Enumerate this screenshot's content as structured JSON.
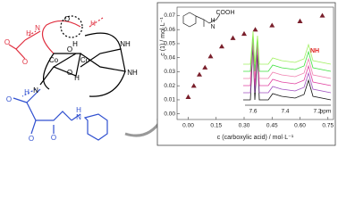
{
  "chart_data": {
    "type": "scatter",
    "x_label": "c (carboxylic acid) / mol·L⁻¹",
    "y_label": "c (1) / mol·L⁻¹",
    "x": [
      0.0,
      0.03,
      0.06,
      0.09,
      0.12,
      0.18,
      0.24,
      0.3,
      0.36,
      0.45,
      0.6,
      0.72
    ],
    "values": [
      0.012,
      0.02,
      0.028,
      0.033,
      0.041,
      0.048,
      0.054,
      0.057,
      0.06,
      0.063,
      0.066,
      0.07
    ],
    "color": "#7a1f2b",
    "xlim": [
      -0.06,
      0.78
    ],
    "ylim": [
      -0.004,
      0.076
    ],
    "xticks": [
      {
        "value": 0,
        "label": "0.00"
      },
      0.15,
      {
        "value": 0.3,
        "label": "0.30"
      },
      0.45,
      {
        "value": 0.6,
        "label": "0.60"
      },
      0.75
    ],
    "yticks": [
      {
        "value": 0,
        "label": "0.00"
      },
      0.01,
      0.02,
      0.03,
      0.04,
      0.05,
      0.06,
      0.07
    ],
    "inset": {
      "acid_label": "COOH",
      "amide_h": "H",
      "amide_n": "N",
      "ppm_ticks": [
        "7.6",
        "7.4",
        "7.2"
      ],
      "ppm_unit": "ppm",
      "nh_label": "NH"
    }
  },
  "structure": {
    "labels": [
      "Co",
      "Co",
      "O",
      "H",
      "O",
      "H",
      "N",
      "H",
      "NH",
      "NH",
      "N",
      "H",
      "H",
      "O",
      "O",
      "O",
      "O",
      "O",
      "N",
      "H",
      "O"
    ]
  }
}
